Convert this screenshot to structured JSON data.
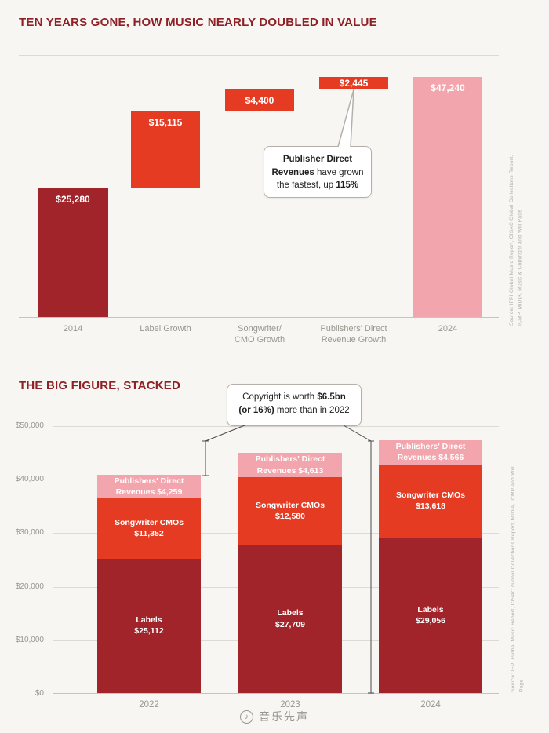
{
  "page": {
    "background": "#f7f6f3"
  },
  "colors": {
    "dark_red": "#a1242b",
    "bright_red": "#e63b23",
    "pink": "#f2a5ac",
    "title": "#8e2026",
    "axis_text": "#9b968f",
    "grid": "#dedbd4",
    "baseline": "#c8c4bc",
    "callout_border": "#b5b1aa",
    "callout_text": "#1f1f1f",
    "leader": "#4a4a4a",
    "source_text": "#b3aea7",
    "watermark": "#9b968f",
    "bar_label": "#ffffff"
  },
  "chart_data": [
    {
      "type": "bar",
      "subtype": "waterfall",
      "title": "TEN YEARS GONE, HOW MUSIC NEARLY DOUBLED IN VALUE",
      "ylim": [
        0,
        47240
      ],
      "categories": [
        "2014",
        "Label Growth",
        "Songwriter/\nCMO Growth",
        "Publishers' Direct\nRevenue Growth",
        "2024"
      ],
      "values": [
        25280,
        15115,
        4400,
        2445,
        47240
      ],
      "starts": [
        0,
        25280,
        40395,
        44795,
        0
      ],
      "value_labels": [
        "$25,280",
        "$15,115",
        "$4,400",
        "$2,445",
        "$47,240"
      ],
      "bar_colors": [
        "dark_red",
        "bright_red",
        "bright_red",
        "bright_red",
        "pink"
      ],
      "annotation": {
        "lines": [
          [
            {
              "t": "Publisher Direct",
              "b": true
            }
          ],
          [
            {
              "t": "Revenues",
              "b": true
            },
            {
              "t": " have grown",
              "b": false
            }
          ],
          [
            {
              "t": "the fastest, up ",
              "b": false
            },
            {
              "t": "115%",
              "b": true
            }
          ]
        ]
      },
      "source": "Source: IFPI Global Music Report, CISAC Global Collections Report, ICMP, MIDiA, Music & Copyright and Will Page"
    },
    {
      "type": "bar",
      "subtype": "stacked",
      "title": "THE BIG FIGURE, STACKED",
      "ylim": [
        0,
        50000
      ],
      "yticks": [
        0,
        10000,
        20000,
        30000,
        40000,
        50000
      ],
      "ytick_labels": [
        "$0",
        "$10,000",
        "$20,000",
        "$30,000",
        "$40,000",
        "$50,000"
      ],
      "categories": [
        "2022",
        "2023",
        "2024"
      ],
      "series": [
        {
          "name": "Labels",
          "color": "dark_red",
          "values": [
            25112,
            27709,
            29056
          ],
          "value_labels": [
            "$25,112",
            "$27,709",
            "$29,056"
          ],
          "label_lines": [
            "Labels",
            "{v}"
          ]
        },
        {
          "name": "Songwriter CMOs",
          "color": "bright_red",
          "values": [
            11352,
            12580,
            13618
          ],
          "value_labels": [
            "$11,352",
            "$12,580",
            "$13,618"
          ],
          "label_lines": [
            "Songwriter CMOs",
            "{v}"
          ]
        },
        {
          "name": "Publishers' Direct Revenues",
          "color": "pink",
          "values": [
            4259,
            4613,
            4566
          ],
          "value_labels": [
            "$4,259",
            "$4,613",
            "$4,566"
          ],
          "label_lines": [
            "Publishers' Direct",
            "Revenues {v}"
          ]
        }
      ],
      "annotation": {
        "lines": [
          [
            {
              "t": "Copyright is worth ",
              "b": false
            },
            {
              "t": "$6.5bn",
              "b": true
            }
          ],
          [
            {
              "t": "(or 16%)",
              "b": true
            },
            {
              "t": " more than in 2022",
              "b": false
            }
          ]
        ]
      },
      "source": "Source: IFPI Global Music Report, CISAC Global Collections Report, MIDiA, ICMP and Will Page"
    }
  ],
  "watermark": {
    "icon_glyph": "♪",
    "text": "音乐先声"
  }
}
